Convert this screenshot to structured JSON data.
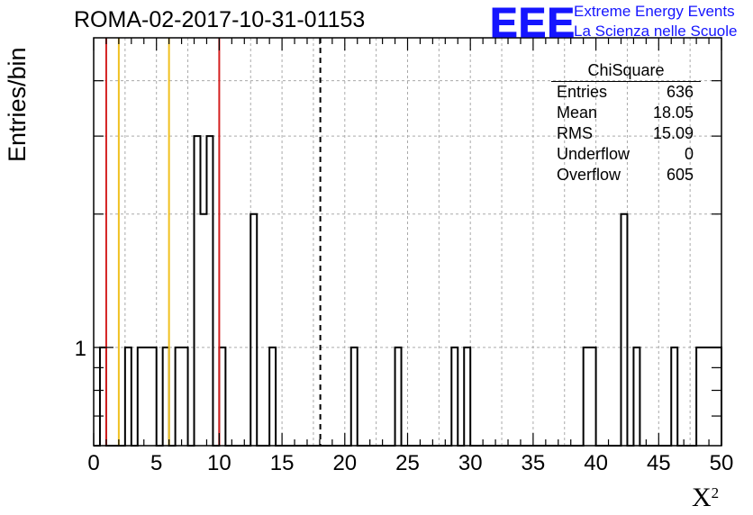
{
  "run_title": "ROMA-02-2017-10-31-01153",
  "logo": {
    "mark": "EEE",
    "line1": "Extreme Energy Events",
    "line2": "La Scienza nelle Scuole",
    "color": "#1515ff"
  },
  "stats_box": {
    "title": "ChiSquare",
    "rows": [
      {
        "label": "Entries",
        "value": "636"
      },
      {
        "label": "Mean",
        "value": "18.05"
      },
      {
        "label": "RMS",
        "value": "15.09"
      },
      {
        "label": "Underflow",
        "value": "0"
      },
      {
        "label": "Overflow",
        "value": "605"
      }
    ]
  },
  "chart_data": {
    "type": "bar",
    "title": "ROMA-02-2017-10-31-01153",
    "xlabel": "X",
    "xlabel_superscript": "2",
    "ylabel": "Entries/bin",
    "xlim": [
      0,
      50
    ],
    "ylim": [
      0.6,
      5
    ],
    "y_scale": "log",
    "bin_width": 0.5,
    "x_ticks": [
      0,
      5,
      10,
      15,
      20,
      25,
      30,
      35,
      40,
      45,
      50
    ],
    "y_tick_labels": [
      {
        "value": 1,
        "label": "1"
      }
    ],
    "grid": true,
    "bins": [
      {
        "x": 0.0,
        "count": 0.6
      },
      {
        "x": 0.5,
        "count": 1
      },
      {
        "x": 2.5,
        "count": 1
      },
      {
        "x": 3.5,
        "count": 1
      },
      {
        "x": 4.0,
        "count": 1
      },
      {
        "x": 4.5,
        "count": 1
      },
      {
        "x": 5.5,
        "count": 1
      },
      {
        "x": 6.5,
        "count": 1
      },
      {
        "x": 7.0,
        "count": 1
      },
      {
        "x": 8.0,
        "count": 3
      },
      {
        "x": 8.5,
        "count": 2
      },
      {
        "x": 9.0,
        "count": 3
      },
      {
        "x": 10.0,
        "count": 1
      },
      {
        "x": 12.5,
        "count": 2
      },
      {
        "x": 14.0,
        "count": 1
      },
      {
        "x": 20.5,
        "count": 1
      },
      {
        "x": 24.0,
        "count": 1
      },
      {
        "x": 28.5,
        "count": 1
      },
      {
        "x": 29.5,
        "count": 1
      },
      {
        "x": 39.0,
        "count": 1
      },
      {
        "x": 39.5,
        "count": 1
      },
      {
        "x": 42.0,
        "count": 2
      },
      {
        "x": 43.0,
        "count": 1
      },
      {
        "x": 46.0,
        "count": 1
      },
      {
        "x": 48.0,
        "count": 1
      },
      {
        "x": 48.5,
        "count": 1
      },
      {
        "x": 49.0,
        "count": 1
      },
      {
        "x": 49.5,
        "count": 1
      }
    ],
    "vertical_lines": [
      {
        "x": 1,
        "color": "#d42020",
        "style": "solid"
      },
      {
        "x": 2,
        "color": "#f0c020",
        "style": "solid"
      },
      {
        "x": 6,
        "color": "#f0c020",
        "style": "solid"
      },
      {
        "x": 10,
        "color": "#d42020",
        "style": "solid"
      },
      {
        "x": 18.05,
        "color": "#000000",
        "style": "dashed"
      }
    ]
  }
}
